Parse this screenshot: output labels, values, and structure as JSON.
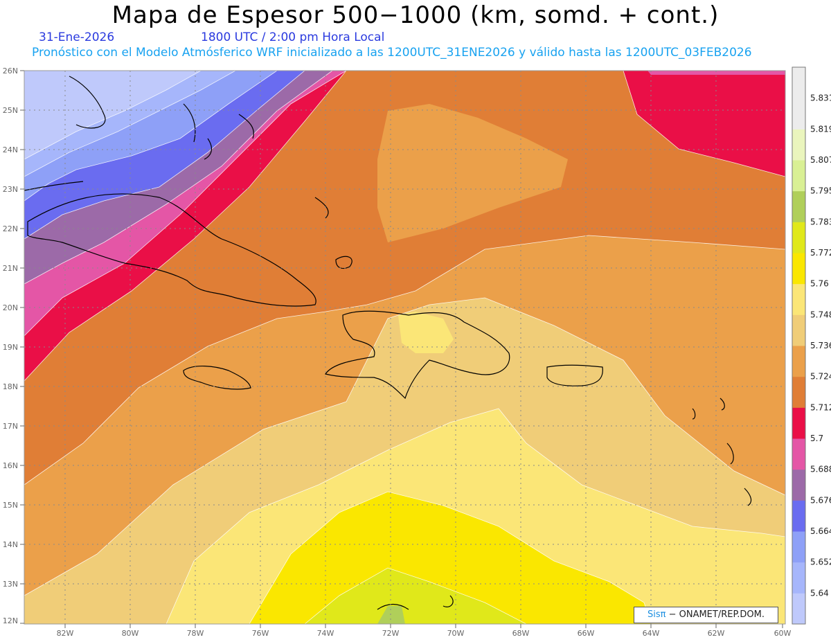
{
  "header": {
    "title": "Mapa de Espesor 500−1000 (km, somd. + cont.)",
    "date": "31-Ene-2026",
    "time": "1800 UTC / 2:00 pm Hora Local",
    "description": "Pronóstico con el Modelo Atmósferico WRF inicializado a las 1200UTC_31ENE2026 y válido hasta las  1200UTC_03FEB2026"
  },
  "map": {
    "lat_labels": [
      "26N",
      "25N",
      "24N",
      "23N",
      "22N",
      "21N",
      "20N",
      "19N",
      "18N",
      "17N",
      "16N",
      "15N",
      "14N",
      "13N",
      "12N"
    ],
    "lon_labels": [
      "82W",
      "80W",
      "78W",
      "76W",
      "74W",
      "72W",
      "70W",
      "68W",
      "66W",
      "64W",
      "62W",
      "60W"
    ]
  },
  "colorbar": {
    "levels": [
      "5.64",
      "5.652",
      "5.664",
      "5.676",
      "5.688",
      "5.7",
      "5.712",
      "5.724",
      "5.736",
      "5.748",
      "5.76",
      "5.772",
      "5.783",
      "5.795",
      "5.807",
      "5.819",
      "5.831"
    ],
    "colors": [
      "#bfc9fb",
      "#a6b6fb",
      "#8ea0f7",
      "#6a6cf0",
      "#9c6aa8",
      "#e456a6",
      "#ea0f47",
      "#e07e36",
      "#eba04a",
      "#f0cd78",
      "#fbe677",
      "#fae700",
      "#e0e81a",
      "#b0cf5a",
      "#d9f094",
      "#eaf5bd",
      "#ececec",
      "#ececec"
    ]
  },
  "credit": {
    "brand": "Sisπ",
    "text": " − ONAMET/REP.DOM."
  }
}
